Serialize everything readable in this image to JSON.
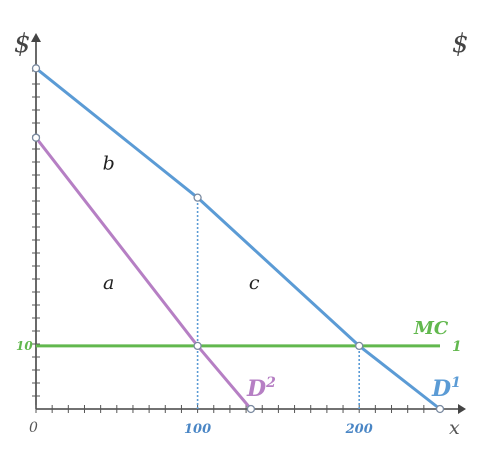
{
  "chart_data": {
    "type": "line",
    "x_axis_label": "x",
    "y_axis_label": "$",
    "y_axis_label_right": "$",
    "origin_label": "0",
    "xlim": [
      0,
      250
    ],
    "ylim": [
      0,
      55
    ],
    "x_ticks": [
      {
        "value": 100,
        "label": "100"
      },
      {
        "value": 200,
        "label": "200"
      }
    ],
    "y_ticks": [
      {
        "value": 10,
        "label": "10"
      }
    ],
    "right_tick_label": "1",
    "series": [
      {
        "name": "D1",
        "label_main": "D",
        "label_sup": "1",
        "color": "#5b9bd5",
        "points": [
          [
            0,
            54
          ],
          [
            100,
            33.5
          ],
          [
            200,
            10
          ],
          [
            250,
            0
          ]
        ]
      },
      {
        "name": "D2",
        "label_main": "D",
        "label_sup": "2",
        "color": "#b67fc4",
        "points": [
          [
            0,
            43
          ],
          [
            100,
            10
          ],
          [
            133,
            0
          ]
        ]
      },
      {
        "name": "MC",
        "label_main": "MC",
        "color": "#62b84e",
        "points": [
          [
            0,
            10
          ],
          [
            250,
            10
          ]
        ]
      }
    ],
    "guides": [
      {
        "x": 100,
        "y_from": 0,
        "y_to": 33.5
      },
      {
        "x": 200,
        "y_from": 0,
        "y_to": 10
      }
    ],
    "regions": [
      {
        "label": "a",
        "x": 45,
        "y": 19
      },
      {
        "label": "b",
        "x": 45,
        "y": 38
      },
      {
        "label": "c",
        "x": 135,
        "y": 19
      }
    ]
  }
}
